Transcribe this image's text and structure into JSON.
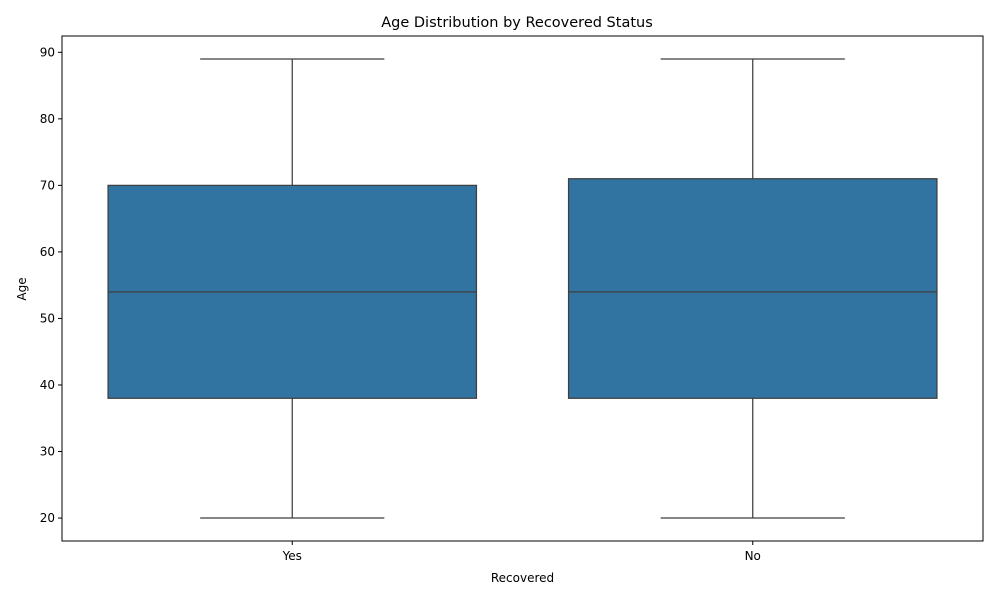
{
  "chart_data": {
    "type": "box",
    "title": "Age Distribution by Recovered Status",
    "xlabel": "Recovered",
    "ylabel": "Age",
    "categories": [
      "Yes",
      "No"
    ],
    "boxes": [
      {
        "category": "Yes",
        "whisker_low": 20,
        "q1": 38,
        "median": 54,
        "q3": 70,
        "whisker_high": 89
      },
      {
        "category": "No",
        "whisker_low": 20,
        "q1": 38,
        "median": 54,
        "q3": 71,
        "whisker_high": 89
      }
    ],
    "ylim": [
      16.55,
      92.45
    ],
    "yticks": [
      20,
      30,
      40,
      50,
      60,
      70,
      80,
      90
    ],
    "grid": false,
    "box_color": "#3274a1",
    "line_color": "#3f3f3f"
  }
}
